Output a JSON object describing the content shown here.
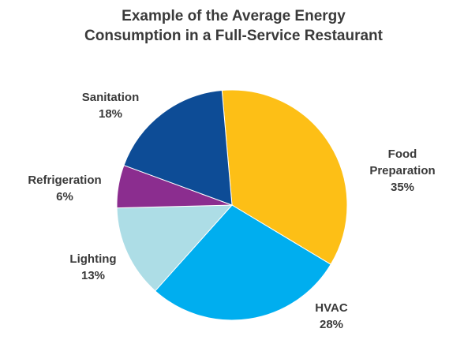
{
  "chart_data": {
    "type": "pie",
    "title_lines": [
      "Example of the Average Energy",
      "Consumption in a Full-Service Restaurant"
    ],
    "slices": [
      {
        "label_lines": [
          "Food",
          "Preparation"
        ],
        "value": 35,
        "value_label": "35%",
        "color": "#FDBF16"
      },
      {
        "label_lines": [
          "HVAC"
        ],
        "value": 28,
        "value_label": "28%",
        "color": "#00AEEF"
      },
      {
        "label_lines": [
          "Lighting"
        ],
        "value": 13,
        "value_label": "13%",
        "color": "#ADDDE6"
      },
      {
        "label_lines": [
          "Refrigeration"
        ],
        "value": 6,
        "value_label": "6%",
        "color": "#8B2D8F"
      },
      {
        "label_lines": [
          "Sanitation"
        ],
        "value": 18,
        "value_label": "18%",
        "color": "#0D4C96"
      }
    ],
    "legend": "none",
    "start": "top, clockwise"
  }
}
